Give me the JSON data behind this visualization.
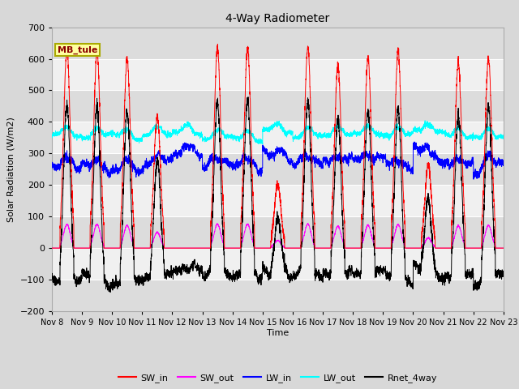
{
  "title": "4-Way Radiometer",
  "xlabel": "Time",
  "ylabel": "Solar Radiation (W/m2)",
  "ylim": [
    -200,
    700
  ],
  "yticks": [
    -200,
    -100,
    0,
    100,
    200,
    300,
    400,
    500,
    600,
    700
  ],
  "x_labels": [
    "Nov 8",
    "Nov 9",
    "Nov 10",
    "Nov 11",
    "Nov 12",
    "Nov 13",
    "Nov 14",
    "Nov 15",
    "Nov 16",
    "Nov 17",
    "Nov 18",
    "Nov 19",
    "Nov 20",
    "Nov 21",
    "Nov 22",
    "Nov 23"
  ],
  "station_label": "MB_tule",
  "colors": {
    "SW_in": "#ff0000",
    "SW_out": "#ff00ff",
    "LW_in": "#0000ff",
    "LW_out": "#00ffff",
    "Rnet_4way": "#000000"
  },
  "legend_labels": [
    "SW_in",
    "SW_out",
    "LW_in",
    "LW_out",
    "Rnet_4way"
  ],
  "fig_bg": "#d8d8d8",
  "plot_bg_light": "#f0f0f0",
  "plot_bg_dark": "#dcdcdc",
  "grid_color": "#ffffff",
  "n_days": 15,
  "points_per_day": 288,
  "day_peaks_SW": [
    630,
    625,
    600,
    420,
    0,
    635,
    635,
    205,
    635,
    580,
    600,
    625,
    265,
    590,
    600
  ],
  "lw_out_base": [
    358,
    355,
    352,
    360,
    365,
    350,
    345,
    370,
    355,
    360,
    362,
    358,
    370,
    355,
    352
  ],
  "lw_in_base": [
    260,
    255,
    250,
    270,
    300,
    265,
    260,
    290,
    270,
    275,
    280,
    260,
    295,
    265,
    260
  ]
}
